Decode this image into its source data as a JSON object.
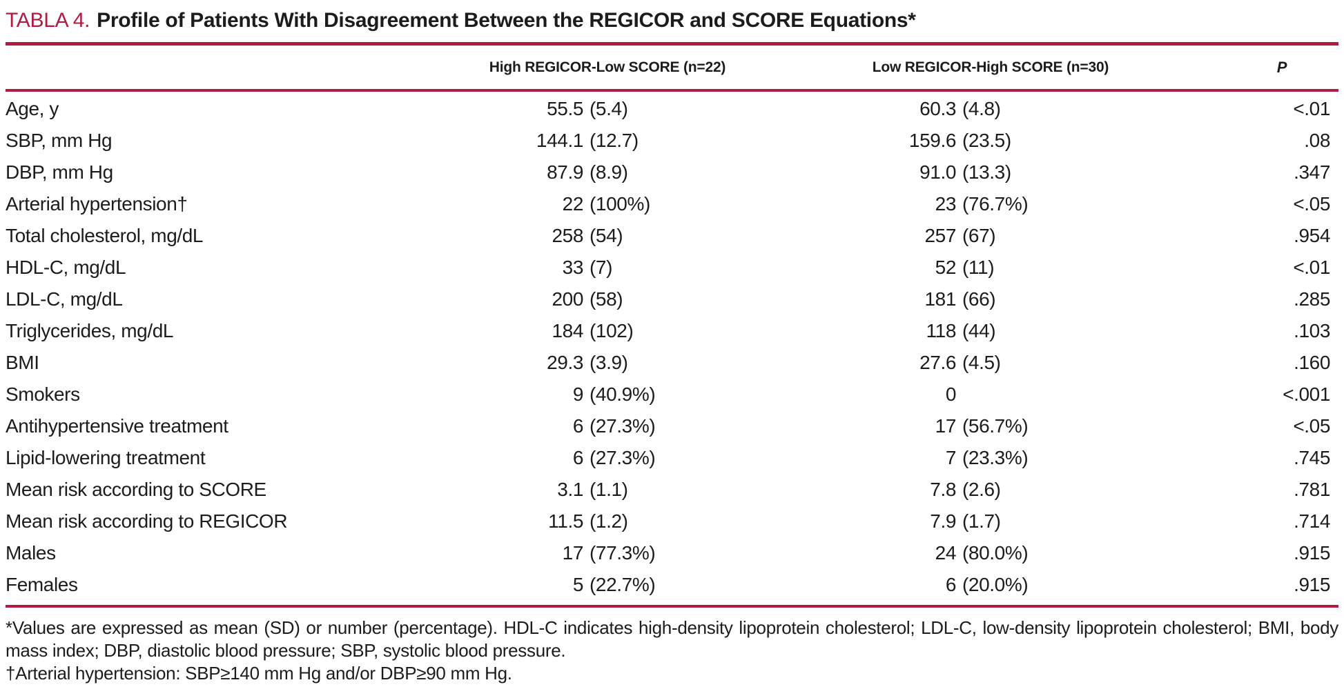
{
  "title": {
    "tag": "TABLA 4.",
    "text": "Profile of Patients With Disagreement Between the REGICOR and SCORE Equations*"
  },
  "table": {
    "columns": [
      "High REGICOR-Low SCORE (n=22)",
      "Low REGICOR-High SCORE (n=30)",
      "P"
    ],
    "rows": [
      {
        "label": "Age, y",
        "col1_value": "55.5",
        "col1_sd": "(5.4)",
        "col2_value": "60.3",
        "col2_sd": "(4.8)",
        "p": "<.01"
      },
      {
        "label": "SBP, mm Hg",
        "col1_value": "144.1",
        "col1_sd": "(12.7)",
        "col2_value": "159.6",
        "col2_sd": "(23.5)",
        "p": ".08"
      },
      {
        "label": "DBP, mm Hg",
        "col1_value": "87.9",
        "col1_sd": "(8.9)",
        "col2_value": "91.0",
        "col2_sd": "(13.3)",
        "p": ".347"
      },
      {
        "label": "Arterial hypertension†",
        "col1_value": "22",
        "col1_sd": "(100%)",
        "col2_value": "23",
        "col2_sd": "(76.7%)",
        "p": "<.05"
      },
      {
        "label": "Total cholesterol, mg/dL",
        "col1_value": "258",
        "col1_sd": "(54)",
        "col2_value": "257",
        "col2_sd": "(67)",
        "p": ".954"
      },
      {
        "label": "HDL-C, mg/dL",
        "col1_value": "33",
        "col1_sd": "(7)",
        "col2_value": "52",
        "col2_sd": "(11)",
        "p": "<.01"
      },
      {
        "label": "LDL-C, mg/dL",
        "col1_value": "200",
        "col1_sd": "(58)",
        "col2_value": "181",
        "col2_sd": "(66)",
        "p": ".285"
      },
      {
        "label": "Triglycerides, mg/dL",
        "col1_value": "184",
        "col1_sd": "(102)",
        "col2_value": "118",
        "col2_sd": "(44)",
        "p": ".103"
      },
      {
        "label": "BMI",
        "col1_value": "29.3",
        "col1_sd": "(3.9)",
        "col2_value": "27.6",
        "col2_sd": "(4.5)",
        "p": ".160"
      },
      {
        "label": "Smokers",
        "col1_value": "9",
        "col1_sd": "(40.9%)",
        "col2_value": "0",
        "col2_sd": "",
        "p": "<.001"
      },
      {
        "label": "Antihypertensive treatment",
        "col1_value": "6",
        "col1_sd": "(27.3%)",
        "col2_value": "17",
        "col2_sd": "(56.7%)",
        "p": "<.05"
      },
      {
        "label": "Lipid-lowering treatment",
        "col1_value": "6",
        "col1_sd": "(27.3%)",
        "col2_value": "7",
        "col2_sd": "(23.3%)",
        "p": ".745"
      },
      {
        "label": "Mean risk according to SCORE",
        "col1_value": "3.1",
        "col1_sd": "(1.1)",
        "col2_value": "7.8",
        "col2_sd": "(2.6)",
        "p": ".781"
      },
      {
        "label": "Mean risk according to REGICOR",
        "col1_value": "11.5",
        "col1_sd": "(1.2)",
        "col2_value": "7.9",
        "col2_sd": "(1.7)",
        "p": ".714"
      },
      {
        "label": "Males",
        "col1_value": "17",
        "col1_sd": "(77.3%)",
        "col2_value": "24",
        "col2_sd": "(80.0%)",
        "p": ".915"
      },
      {
        "label": "Females",
        "col1_value": "5",
        "col1_sd": "(22.7%)",
        "col2_value": "6",
        "col2_sd": "(20.0%)",
        "p": ".915"
      }
    ]
  },
  "footnotes": [
    "*Values are expressed as mean (SD) or number (percentage). HDL-C indicates high-density lipoprotein cholesterol; LDL-C, low-density lipoprotein cholesterol; BMI, body mass index; DBP, diastolic blood pressure; SBP, systolic blood pressure.",
    "†Arterial hypertension: SBP≥140 mm Hg and/or DBP≥90 mm Hg."
  ],
  "colors": {
    "accent": "#b21b40",
    "text": "#1e1b1c"
  }
}
